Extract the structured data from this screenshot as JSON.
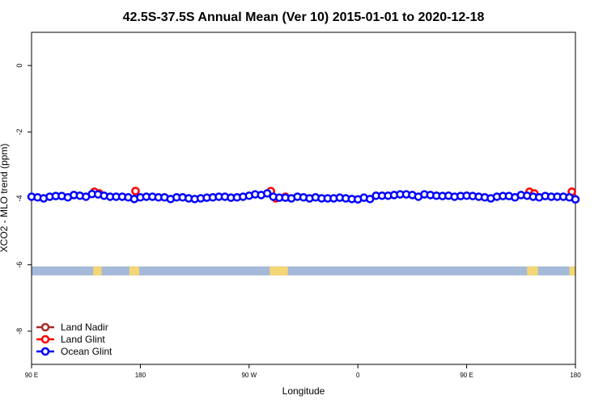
{
  "chart_data": {
    "type": "line",
    "title": "42.5S-37.5S Annual Mean (Ver 10)   2015-01-01 to 2020-12-18",
    "x_label": "Longitude",
    "y_label": "XCO2 - MLO trend (ppm)",
    "xlim": [
      90,
      540
    ],
    "ylim": [
      -9,
      1
    ],
    "xticks": [
      {
        "value": 90,
        "label": "90 E"
      },
      180,
      {
        "value": 270,
        "label": "90 W"
      },
      {
        "value": 360,
        "label": "0"
      },
      {
        "value": 450,
        "label": "90 E"
      },
      {
        "value": 540,
        "label": "180"
      }
    ],
    "yticks": [
      0,
      -2,
      -4,
      -6,
      -8
    ],
    "legend": "bottomleft",
    "series": [
      {
        "name": "Land Nadir",
        "color": "#a52a2a",
        "x": [
          176,
          288,
          537
        ],
        "values": [
          -3.78,
          -3.8,
          -3.8
        ]
      },
      {
        "name": "Land Glint",
        "color": "#ff0000",
        "x": [
          142,
          146,
          176,
          288,
          292,
          300,
          502,
          506,
          537
        ],
        "values": [
          -3.8,
          -3.85,
          -3.78,
          -3.78,
          -4.0,
          -3.95,
          -3.8,
          -3.85,
          -3.8
        ]
      },
      {
        "name": "Ocean Glint",
        "color": "#0000ff",
        "x": [
          90,
          95,
          100,
          105,
          110,
          115,
          120,
          125,
          130,
          135,
          140,
          145,
          150,
          155,
          160,
          165,
          170,
          175,
          180,
          185,
          190,
          195,
          200,
          205,
          210,
          215,
          220,
          225,
          230,
          235,
          240,
          245,
          250,
          255,
          260,
          265,
          270,
          275,
          280,
          285,
          290,
          295,
          300,
          305,
          310,
          315,
          320,
          325,
          330,
          335,
          340,
          345,
          350,
          355,
          360,
          365,
          370,
          375,
          380,
          385,
          390,
          395,
          400,
          405,
          410,
          415,
          420,
          425,
          430,
          435,
          440,
          445,
          450,
          455,
          460,
          465,
          470,
          475,
          480,
          485,
          490,
          495,
          500,
          505,
          510,
          515,
          520,
          525,
          530,
          535,
          540
        ],
        "values": [
          -3.95,
          -3.97,
          -4.0,
          -3.95,
          -3.93,
          -3.93,
          -3.97,
          -3.9,
          -3.92,
          -3.95,
          -3.87,
          -3.88,
          -3.92,
          -3.95,
          -3.95,
          -3.95,
          -3.97,
          -4.02,
          -3.97,
          -3.95,
          -3.95,
          -3.97,
          -3.97,
          -4.02,
          -3.97,
          -3.97,
          -4.0,
          -4.02,
          -4.0,
          -3.98,
          -3.97,
          -3.95,
          -3.95,
          -3.98,
          -3.97,
          -3.95,
          -3.92,
          -3.88,
          -3.9,
          -3.85,
          -3.95,
          -3.98,
          -3.98,
          -4.0,
          -3.95,
          -3.97,
          -4.0,
          -3.97,
          -4.0,
          -4.0,
          -4.0,
          -3.98,
          -4.0,
          -4.02,
          -4.03,
          -3.98,
          -4.02,
          -3.92,
          -3.92,
          -3.92,
          -3.9,
          -3.88,
          -3.88,
          -3.9,
          -3.95,
          -3.88,
          -3.9,
          -3.92,
          -3.93,
          -3.92,
          -3.95,
          -3.93,
          -3.92,
          -3.93,
          -3.95,
          -3.97,
          -4.0,
          -3.95,
          -3.93,
          -3.93,
          -3.97,
          -3.9,
          -3.92,
          -3.95,
          -3.97,
          -3.93,
          -3.95,
          -3.95,
          -3.95,
          -3.97,
          -4.03
        ]
      }
    ],
    "mask": {
      "band": [
        -6.05,
        -6.32
      ],
      "ocean_color": "#a5b9d9",
      "land_color": "#f5d675",
      "land_ranges": [
        [
          141,
          148
        ],
        [
          171,
          179
        ],
        [
          287,
          302
        ],
        [
          500,
          509
        ],
        [
          535,
          540
        ]
      ]
    }
  }
}
